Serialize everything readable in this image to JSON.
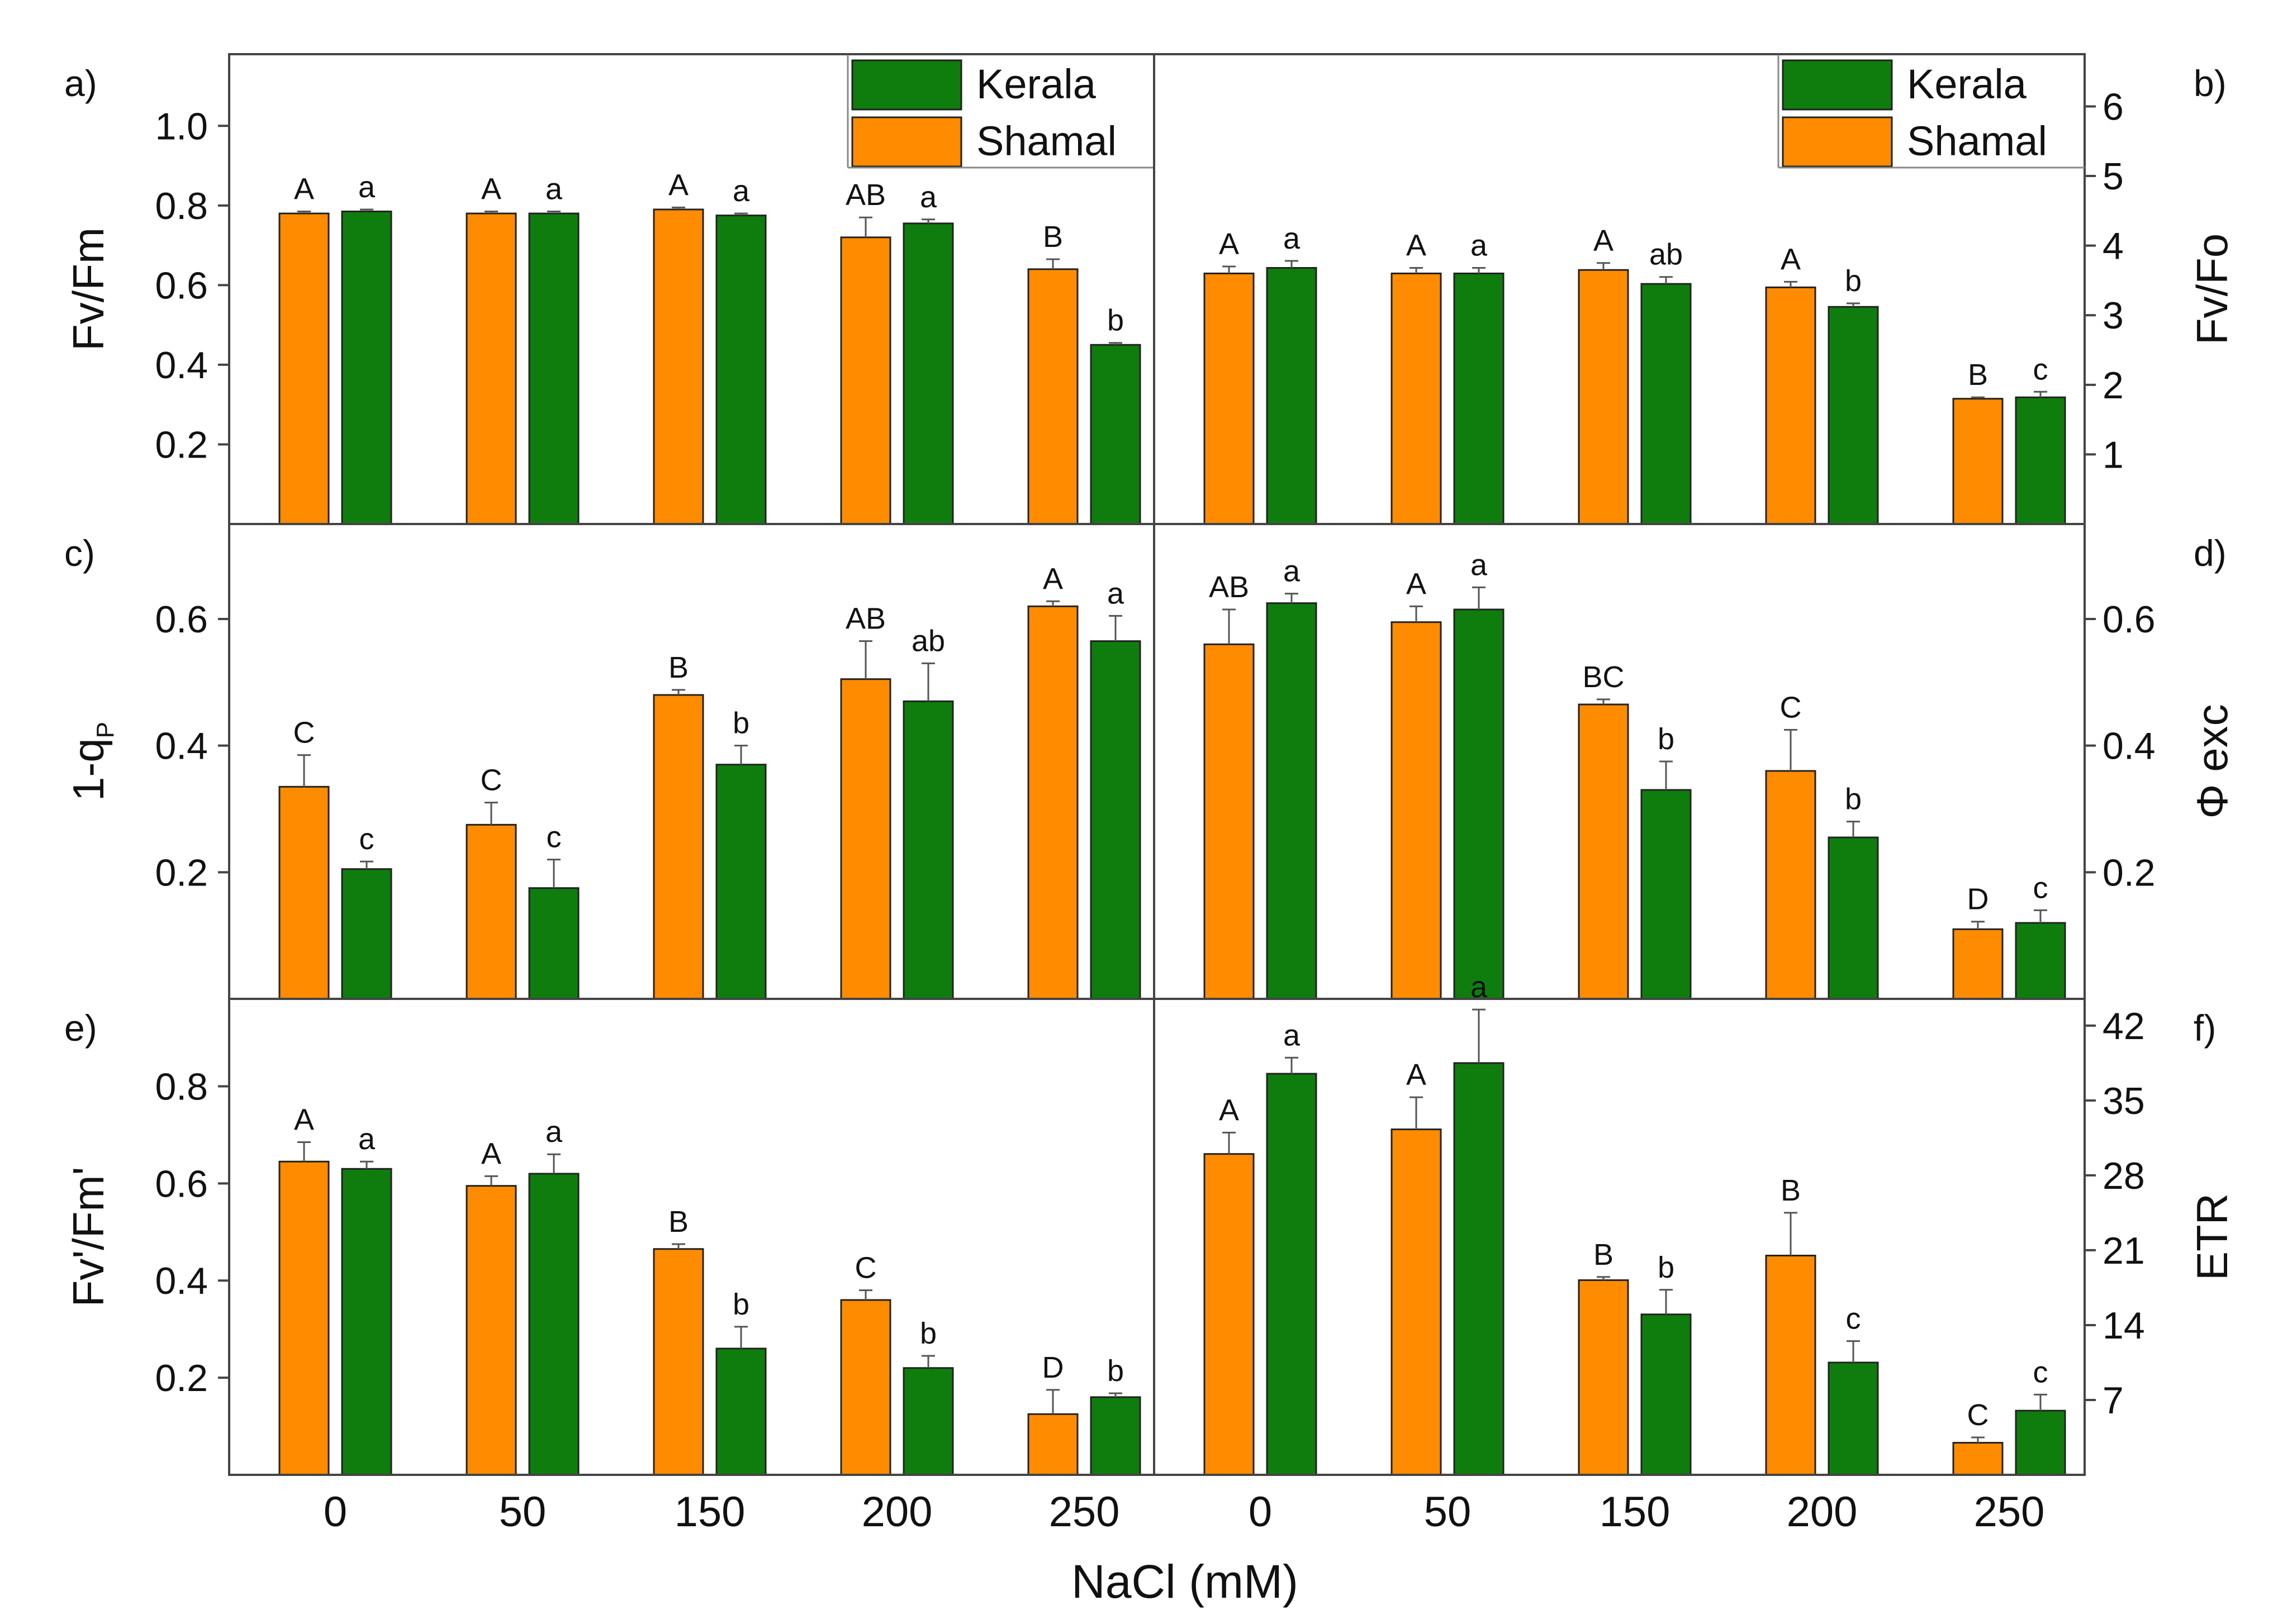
{
  "figure": {
    "xlabel": "NaCl (mM)",
    "colors": {
      "Shamal": "#FF8C00",
      "Kerala": "#0E7D0E",
      "axis": "#444444",
      "errorbar": "#555555"
    },
    "legend_entries": [
      "Kerala",
      "Shamal"
    ]
  },
  "chart_data": [
    {
      "id": "a",
      "type": "bar",
      "panel_label": "a)",
      "ylabel": "Fv/Fm",
      "categories": [
        "0",
        "50",
        "150",
        "200",
        "250"
      ],
      "ylim": [
        0,
        1.18
      ],
      "yticks": [
        "0.2",
        "0.4",
        "0.6",
        "0.8",
        "1.0"
      ],
      "ytick_values": [
        0.2,
        0.4,
        0.6,
        0.8,
        1.0
      ],
      "axis_side": "left",
      "show_xticks": false,
      "legend": true,
      "series": [
        {
          "name": "Shamal",
          "values": [
            0.78,
            0.78,
            0.79,
            0.72,
            0.64
          ],
          "errors": [
            0.005,
            0.005,
            0.005,
            0.05,
            0.025
          ],
          "letters": [
            "A",
            "A",
            "A",
            "AB",
            "B"
          ]
        },
        {
          "name": "Kerala",
          "values": [
            0.785,
            0.78,
            0.775,
            0.755,
            0.45
          ],
          "errors": [
            0.005,
            0.005,
            0.005,
            0.01,
            0.005
          ],
          "letters": [
            "a",
            "a",
            "a",
            "a",
            "b"
          ]
        }
      ]
    },
    {
      "id": "b",
      "type": "bar",
      "panel_label": "b)",
      "ylabel": "Fv/Fo",
      "categories": [
        "0",
        "50",
        "150",
        "200",
        "250"
      ],
      "ylim": [
        0,
        6.75
      ],
      "yticks": [
        "1",
        "2",
        "3",
        "4",
        "5",
        "6"
      ],
      "ytick_values": [
        1,
        2,
        3,
        4,
        5,
        6
      ],
      "axis_side": "right",
      "show_xticks": false,
      "legend": true,
      "series": [
        {
          "name": "Shamal",
          "values": [
            3.6,
            3.6,
            3.65,
            3.4,
            1.8
          ],
          "errors": [
            0.1,
            0.08,
            0.1,
            0.08,
            0.02
          ],
          "letters": [
            "A",
            "A",
            "A",
            "A",
            "B"
          ]
        },
        {
          "name": "Kerala",
          "values": [
            3.68,
            3.6,
            3.45,
            3.12,
            1.82
          ],
          "errors": [
            0.1,
            0.08,
            0.1,
            0.05,
            0.08
          ],
          "letters": [
            "a",
            "a",
            "ab",
            "b",
            "c"
          ]
        }
      ]
    },
    {
      "id": "c",
      "type": "bar",
      "panel_label": "c)",
      "ylabel": "1-qp",
      "ylabel_main": "1-q",
      "ylabel_sub": "P",
      "categories": [
        "0",
        "50",
        "150",
        "200",
        "250"
      ],
      "ylim": [
        0,
        0.75
      ],
      "yticks": [
        "0.2",
        "0.4",
        "0.6"
      ],
      "ytick_values": [
        0.2,
        0.4,
        0.6
      ],
      "axis_side": "left",
      "show_xticks": false,
      "legend": false,
      "series": [
        {
          "name": "Shamal",
          "values": [
            0.335,
            0.275,
            0.48,
            0.505,
            0.62
          ],
          "errors": [
            0.05,
            0.035,
            0.008,
            0.06,
            0.008
          ],
          "letters": [
            "C",
            "C",
            "B",
            "AB",
            "A"
          ]
        },
        {
          "name": "Kerala",
          "values": [
            0.205,
            0.175,
            0.37,
            0.47,
            0.565
          ],
          "errors": [
            0.012,
            0.045,
            0.03,
            0.06,
            0.04
          ],
          "letters": [
            "c",
            "c",
            "b",
            "ab",
            "a"
          ]
        }
      ]
    },
    {
      "id": "d",
      "type": "bar",
      "panel_label": "d)",
      "ylabel": "Φ exc",
      "categories": [
        "0",
        "50",
        "150",
        "200",
        "250"
      ],
      "ylim": [
        0,
        0.75
      ],
      "yticks": [
        "0.2",
        "0.4",
        "0.6"
      ],
      "ytick_values": [
        0.2,
        0.4,
        0.6
      ],
      "axis_side": "right",
      "show_xticks": false,
      "legend": false,
      "series": [
        {
          "name": "Shamal",
          "values": [
            0.56,
            0.595,
            0.465,
            0.36,
            0.11
          ],
          "errors": [
            0.055,
            0.025,
            0.008,
            0.065,
            0.012
          ],
          "letters": [
            "AB",
            "A",
            "BC",
            "C",
            "D"
          ]
        },
        {
          "name": "Kerala",
          "values": [
            0.625,
            0.615,
            0.33,
            0.255,
            0.12
          ],
          "errors": [
            0.015,
            0.035,
            0.045,
            0.025,
            0.02
          ],
          "letters": [
            "a",
            "a",
            "b",
            "b",
            "c"
          ]
        }
      ]
    },
    {
      "id": "e",
      "type": "bar",
      "panel_label": "e)",
      "ylabel": "Fv'/Fm'",
      "categories": [
        "0",
        "50",
        "150",
        "200",
        "250"
      ],
      "ylim": [
        0,
        0.98
      ],
      "yticks": [
        "0.2",
        "0.4",
        "0.6",
        "0.8"
      ],
      "ytick_values": [
        0.2,
        0.4,
        0.6,
        0.8
      ],
      "axis_side": "left",
      "show_xticks": true,
      "legend": false,
      "series": [
        {
          "name": "Shamal",
          "values": [
            0.645,
            0.595,
            0.465,
            0.36,
            0.125
          ],
          "errors": [
            0.04,
            0.02,
            0.01,
            0.02,
            0.05
          ],
          "letters": [
            "A",
            "A",
            "B",
            "C",
            "D"
          ]
        },
        {
          "name": "Kerala",
          "values": [
            0.63,
            0.62,
            0.26,
            0.22,
            0.16
          ],
          "errors": [
            0.015,
            0.04,
            0.045,
            0.025,
            0.008
          ],
          "letters": [
            "a",
            "a",
            "b",
            "b",
            "b"
          ]
        }
      ]
    },
    {
      "id": "f",
      "type": "bar",
      "panel_label": "f)",
      "ylabel": "ETR",
      "categories": [
        "0",
        "50",
        "150",
        "200",
        "250"
      ],
      "ylim": [
        0,
        44.5
      ],
      "yticks": [
        "7",
        "14",
        "21",
        "28",
        "35",
        "42"
      ],
      "ytick_values": [
        7,
        14,
        21,
        28,
        35,
        42
      ],
      "axis_side": "right",
      "show_xticks": true,
      "legend": false,
      "series": [
        {
          "name": "Shamal",
          "values": [
            30,
            32.3,
            18.2,
            20.5,
            3
          ],
          "errors": [
            2,
            3,
            0.3,
            4,
            0.5
          ],
          "letters": [
            "A",
            "A",
            "B",
            "B",
            "C"
          ]
        },
        {
          "name": "Kerala",
          "values": [
            37.5,
            38.5,
            15,
            10.5,
            6
          ],
          "errors": [
            1.5,
            5,
            2.3,
            2,
            1.5
          ],
          "letters": [
            "a",
            "a",
            "b",
            "c",
            "c"
          ]
        }
      ]
    }
  ]
}
